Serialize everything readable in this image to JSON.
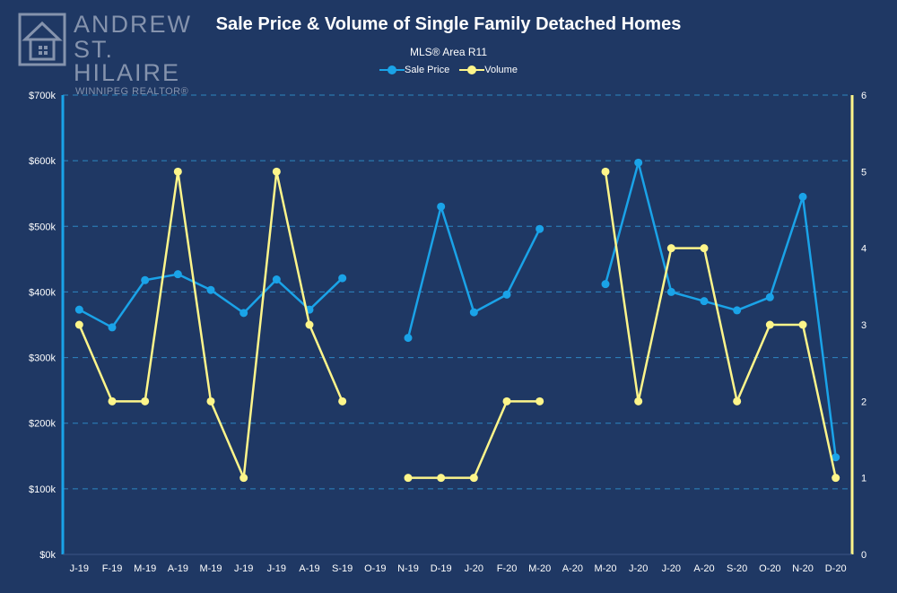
{
  "logo": {
    "line1": "ANDREW",
    "line2": "ST. HILAIRE",
    "line3": "WINNIPEG REALTOR®",
    "icon": "house-icon"
  },
  "colors": {
    "background": "#1f3864",
    "sale_price": "#1aa3e8",
    "volume": "#fdf58a",
    "grid": "#2e86c1",
    "axis_text": "#ffffff"
  },
  "chart_data": {
    "type": "line",
    "title": "Sale Price & Volume of Single Family Detached Homes",
    "subtitle": "MLS® Area R11",
    "legend_position": "top-center",
    "grid": true,
    "categories": [
      "J-19",
      "F-19",
      "M-19",
      "A-19",
      "M-19",
      "J-19",
      "J-19",
      "A-19",
      "S-19",
      "O-19",
      "N-19",
      "D-19",
      "J-20",
      "F-20",
      "M-20",
      "A-20",
      "M-20",
      "J-20",
      "J-20",
      "A-20",
      "S-20",
      "O-20",
      "N-20",
      "D-20"
    ],
    "y_left": {
      "min": 0,
      "max": 700000,
      "step": 100000,
      "tick_labels": [
        "$0k",
        "$100k",
        "$200k",
        "$300k",
        "$400k",
        "$500k",
        "$600k",
        "$700k"
      ]
    },
    "y_right": {
      "min": 0,
      "max": 6,
      "step": 1,
      "tick_labels": [
        "0",
        "1",
        "2",
        "3",
        "4",
        "5",
        "6"
      ]
    },
    "series": [
      {
        "name": "Sale Price",
        "axis": "left",
        "values": [
          373000,
          346000,
          418000,
          427000,
          403000,
          368000,
          419000,
          373000,
          421000,
          null,
          330000,
          530000,
          369000,
          396000,
          496000,
          null,
          412000,
          597000,
          400000,
          386000,
          372000,
          392000,
          545000,
          148000
        ]
      },
      {
        "name": "Volume",
        "axis": "right",
        "values": [
          3,
          2,
          2,
          5,
          2,
          1,
          5,
          3,
          2,
          null,
          1,
          1,
          1,
          2,
          2,
          null,
          5,
          2,
          4,
          4,
          2,
          3,
          3,
          1
        ]
      }
    ]
  }
}
